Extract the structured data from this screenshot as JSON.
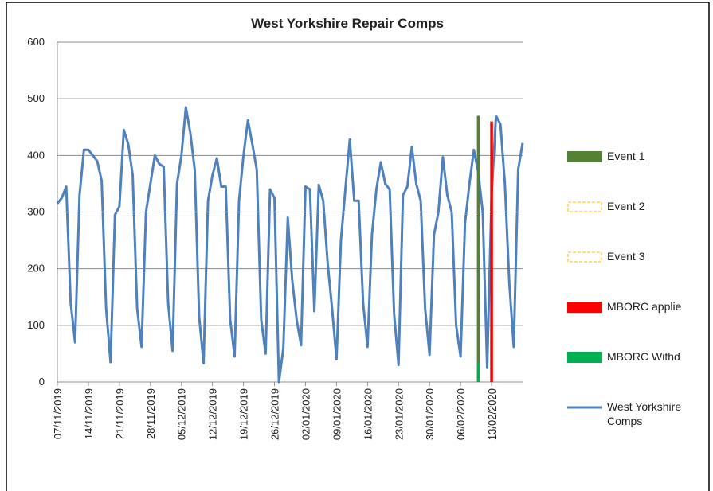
{
  "chart_data": {
    "type": "line",
    "title": "West Yorkshire Repair Comps",
    "categories": [
      "07/11/2019",
      null,
      null,
      null,
      null,
      null,
      null,
      "14/11/2019",
      null,
      null,
      null,
      null,
      null,
      null,
      "21/11/2019",
      null,
      null,
      null,
      null,
      null,
      null,
      "28/11/2019",
      null,
      null,
      null,
      null,
      null,
      null,
      "05/12/2019",
      null,
      null,
      null,
      null,
      null,
      null,
      "12/12/2019",
      null,
      null,
      null,
      null,
      null,
      null,
      "19/12/2019",
      null,
      null,
      null,
      null,
      null,
      null,
      "26/12/2019",
      null,
      null,
      null,
      null,
      null,
      null,
      "02/01/2020",
      null,
      null,
      null,
      null,
      null,
      null,
      "09/01/2020",
      null,
      null,
      null,
      null,
      null,
      null,
      "16/01/2020",
      null,
      null,
      null,
      null,
      null,
      null,
      "23/01/2020",
      null,
      null,
      null,
      null,
      null,
      null,
      "30/01/2020",
      null,
      null,
      null,
      null,
      null,
      null,
      "06/02/2020",
      null,
      null,
      null,
      null,
      null,
      null,
      "13/02/2020",
      null,
      null,
      null,
      null,
      null,
      null,
      null
    ],
    "series": [
      {
        "name": "West Yorkshire Comps",
        "color": "#4f81bd",
        "values": [
          315,
          325,
          345,
          140,
          70,
          330,
          410,
          410,
          400,
          390,
          355,
          130,
          35,
          295,
          310,
          445,
          420,
          365,
          130,
          62,
          300,
          350,
          400,
          385,
          380,
          140,
          55,
          350,
          400,
          485,
          440,
          375,
          115,
          33,
          320,
          365,
          395,
          345,
          345,
          110,
          45,
          320,
          400,
          462,
          420,
          375,
          110,
          50,
          340,
          325,
          0,
          60,
          290,
          180,
          110,
          65,
          345,
          340,
          125,
          348,
          320,
          210,
          130,
          40,
          250,
          340,
          428,
          320,
          320,
          140,
          62,
          260,
          340,
          388,
          350,
          340,
          120,
          30,
          330,
          345,
          415,
          350,
          320,
          130,
          48,
          260,
          300,
          397,
          330,
          300,
          100,
          45,
          280,
          350,
          410,
          370,
          300,
          25,
          330,
          470,
          455,
          350,
          175,
          62,
          375,
          422
        ]
      }
    ],
    "events": [
      {
        "name": "Event 1",
        "color": "#548235",
        "style": "solid",
        "x": [
          95
        ],
        "values": [
          470
        ]
      },
      {
        "name": "Event 2",
        "color": "#ffc000",
        "style": "dashed",
        "x": [],
        "values": []
      },
      {
        "name": "Event 3",
        "color": "#ffc000",
        "style": "dashed",
        "x": [],
        "values": []
      },
      {
        "name": "MBORC applie",
        "color": "#ff0000",
        "style": "solid",
        "x": [
          98
        ],
        "values": [
          460
        ]
      },
      {
        "name": "MBORC Withd",
        "color": "#00b050",
        "style": "solid",
        "x": [
          95
        ],
        "values": [
          35
        ]
      }
    ],
    "xlim": [
      0,
      105
    ],
    "ylim": [
      0,
      600
    ],
    "yticks": [
      0,
      100,
      200,
      300,
      400,
      500,
      600
    ],
    "grid": true
  }
}
